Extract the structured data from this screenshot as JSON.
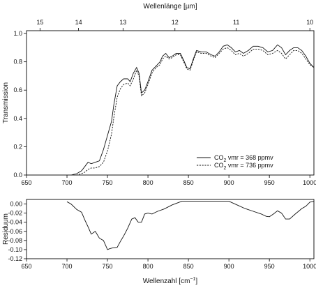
{
  "chart_data": [
    {
      "type": "line",
      "top_axis": {
        "label": "Wellenlänge [µm]",
        "ticks": [
          15,
          14,
          13,
          12,
          11,
          10
        ]
      },
      "xlabel": "",
      "ylabel": "Transmission",
      "xlim": [
        650,
        1005
      ],
      "ylim": [
        0,
        1.02
      ],
      "xticks": [
        650,
        700,
        750,
        800,
        850,
        900,
        950,
        1000
      ],
      "xtick_labels": [
        "650",
        "700",
        "750",
        "800",
        "850",
        "900",
        "950",
        "1000"
      ],
      "yticks": [
        0,
        0.2,
        0.4,
        0.6,
        0.8,
        1.0
      ],
      "ytick_labels": [
        "0.0",
        "0.2",
        "0.4",
        "0.6",
        "0.8",
        "1.0"
      ],
      "grid": false,
      "legend_position": "bottom-right",
      "series": [
        {
          "name": "CO2 vmr = 368 ppmv",
          "legend_main": "CO",
          "legend_sub": "2",
          "legend_rest": " vmr = 368 ppmv",
          "style": "solid",
          "x": [
            705,
            712,
            718,
            722,
            726,
            730,
            735,
            740,
            745,
            750,
            755,
            758,
            762,
            766,
            770,
            775,
            778,
            782,
            786,
            789,
            792,
            796,
            800,
            805,
            810,
            815,
            818,
            822,
            826,
            830,
            835,
            840,
            845,
            848,
            852,
            856,
            860,
            866,
            872,
            878,
            883,
            888,
            893,
            898,
            903,
            908,
            913,
            918,
            924,
            930,
            936,
            942,
            948,
            954,
            960,
            965,
            970,
            975,
            980,
            985,
            990,
            995,
            1000,
            1005
          ],
          "y": [
            0.0,
            0.01,
            0.03,
            0.06,
            0.09,
            0.08,
            0.09,
            0.1,
            0.18,
            0.28,
            0.38,
            0.5,
            0.63,
            0.66,
            0.68,
            0.68,
            0.66,
            0.72,
            0.76,
            0.72,
            0.58,
            0.6,
            0.66,
            0.74,
            0.77,
            0.8,
            0.84,
            0.86,
            0.83,
            0.84,
            0.86,
            0.86,
            0.8,
            0.76,
            0.75,
            0.82,
            0.88,
            0.87,
            0.87,
            0.85,
            0.84,
            0.87,
            0.91,
            0.92,
            0.9,
            0.87,
            0.88,
            0.86,
            0.88,
            0.91,
            0.91,
            0.9,
            0.87,
            0.88,
            0.92,
            0.9,
            0.85,
            0.88,
            0.9,
            0.9,
            0.88,
            0.84,
            0.79,
            0.76
          ]
        },
        {
          "name": "CO2 vmr = 736 ppmv",
          "legend_main": "CO",
          "legend_sub": "2",
          "legend_rest": " vmr = 736 ppmv",
          "style": "dashed",
          "x": [
            705,
            712,
            718,
            722,
            726,
            730,
            735,
            740,
            745,
            750,
            755,
            758,
            762,
            766,
            770,
            775,
            778,
            782,
            786,
            789,
            792,
            796,
            800,
            805,
            810,
            815,
            818,
            822,
            826,
            830,
            835,
            840,
            845,
            848,
            852,
            856,
            860,
            866,
            872,
            878,
            883,
            888,
            893,
            898,
            903,
            908,
            913,
            918,
            924,
            930,
            936,
            942,
            948,
            954,
            960,
            965,
            970,
            975,
            980,
            985,
            990,
            995,
            1000,
            1005
          ],
          "y": [
            0.0,
            0.0,
            0.01,
            0.02,
            0.04,
            0.05,
            0.05,
            0.06,
            0.09,
            0.17,
            0.29,
            0.41,
            0.55,
            0.61,
            0.64,
            0.65,
            0.63,
            0.68,
            0.74,
            0.7,
            0.56,
            0.58,
            0.64,
            0.72,
            0.76,
            0.78,
            0.82,
            0.84,
            0.82,
            0.83,
            0.85,
            0.85,
            0.79,
            0.75,
            0.74,
            0.81,
            0.87,
            0.86,
            0.86,
            0.84,
            0.83,
            0.86,
            0.89,
            0.9,
            0.88,
            0.85,
            0.86,
            0.84,
            0.86,
            0.89,
            0.89,
            0.88,
            0.85,
            0.86,
            0.88,
            0.86,
            0.82,
            0.85,
            0.88,
            0.88,
            0.86,
            0.82,
            0.78,
            0.76
          ]
        }
      ]
    },
    {
      "type": "line",
      "xlabel": "Wellenzahl [cm",
      "xlabel_sup": "−1",
      "xlabel_end": "]",
      "ylabel": "Residuum",
      "xlim": [
        650,
        1005
      ],
      "ylim": [
        -0.12,
        0.01
      ],
      "xticks": [
        650,
        700,
        750,
        800,
        850,
        900,
        950,
        1000
      ],
      "xtick_labels": [
        "650",
        "700",
        "750",
        "800",
        "850",
        "900",
        "950",
        "1000"
      ],
      "yticks": [
        0.0,
        -0.02,
        -0.04,
        -0.06,
        -0.08,
        -0.1,
        -0.12
      ],
      "ytick_labels": [
        "0.00",
        "-0.02",
        "-0.04",
        "-0.06",
        "-0.08",
        "-0.10",
        "-0.12"
      ],
      "grid": false,
      "series": [
        {
          "x": [
            700,
            705,
            712,
            718,
            722,
            726,
            730,
            735,
            740,
            745,
            750,
            753,
            757,
            762,
            766,
            770,
            775,
            780,
            784,
            788,
            792,
            796,
            800,
            805,
            812,
            820,
            830,
            842,
            860,
            880,
            900,
            910,
            920,
            930,
            940,
            946,
            950,
            955,
            960,
            965,
            970,
            975,
            982,
            990,
            995,
            1000,
            1005
          ],
          "y": [
            0.005,
            0.0,
            -0.012,
            -0.018,
            -0.035,
            -0.05,
            -0.066,
            -0.06,
            -0.075,
            -0.08,
            -0.1,
            -0.098,
            -0.096,
            -0.095,
            -0.082,
            -0.07,
            -0.053,
            -0.033,
            -0.03,
            -0.04,
            -0.04,
            -0.022,
            -0.02,
            -0.022,
            -0.016,
            -0.011,
            -0.002,
            0.006,
            0.006,
            0.006,
            0.006,
            -0.002,
            -0.01,
            -0.016,
            -0.022,
            -0.027,
            -0.028,
            -0.022,
            -0.015,
            -0.02,
            -0.033,
            -0.033,
            -0.022,
            -0.01,
            -0.005,
            0.004,
            0.006
          ]
        }
      ]
    }
  ]
}
